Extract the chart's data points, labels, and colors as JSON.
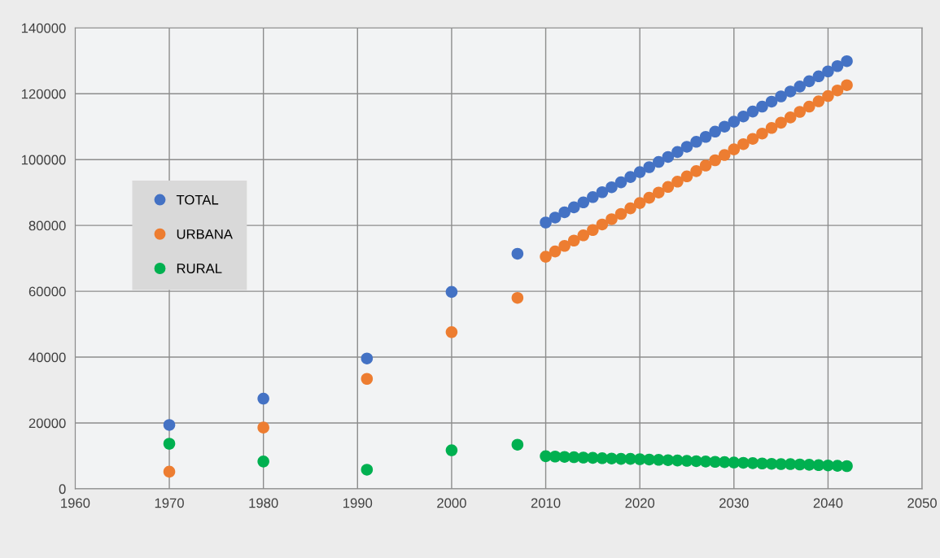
{
  "chart_data": {
    "type": "scatter",
    "xlim": [
      1960,
      2050
    ],
    "xticks": [
      1960,
      1970,
      1980,
      1990,
      2000,
      2010,
      2020,
      2030,
      2040,
      2050
    ],
    "ylim": [
      0,
      140000
    ],
    "yticks": [
      0,
      20000,
      40000,
      60000,
      80000,
      100000,
      120000,
      140000
    ],
    "grid": true,
    "legend": "left",
    "marker": "circle",
    "x": [
      1970,
      1980,
      1991,
      2000,
      2007,
      2010,
      2011,
      2012,
      2013,
      2014,
      2015,
      2016,
      2017,
      2018,
      2019,
      2020,
      2021,
      2022,
      2023,
      2024,
      2025,
      2026,
      2027,
      2028,
      2029,
      2030,
      2031,
      2032,
      2033,
      2034,
      2035,
      2036,
      2037,
      2038,
      2039,
      2040,
      2041,
      2042
    ],
    "series": [
      {
        "name": "TOTAL",
        "color": "#4472c4",
        "values": [
          19400,
          27400,
          39600,
          59800,
          71400,
          80900,
          82400,
          84000,
          85500,
          87000,
          88600,
          90100,
          91600,
          93100,
          94700,
          96200,
          97700,
          99300,
          100800,
          102300,
          103900,
          105400,
          106900,
          108500,
          110000,
          111500,
          113100,
          114600,
          116100,
          117600,
          119200,
          120700,
          122200,
          123800,
          125300,
          126800,
          128400,
          129900
        ]
      },
      {
        "name": "URBANA",
        "color": "#ed7d31",
        "values": [
          5200,
          18600,
          33400,
          47600,
          58000,
          70500,
          72100,
          73800,
          75400,
          77000,
          78600,
          80300,
          81900,
          83500,
          85200,
          86800,
          88400,
          90000,
          91700,
          93300,
          94900,
          96500,
          98200,
          99800,
          101400,
          103100,
          104700,
          106300,
          107900,
          109600,
          111200,
          112800,
          114500,
          116100,
          117700,
          119300,
          121000,
          122600
        ]
      },
      {
        "name": "RURAL",
        "color": "#00b050",
        "values": [
          13700,
          8300,
          5800,
          11700,
          13400,
          9900,
          9800,
          9700,
          9600,
          9500,
          9400,
          9300,
          9200,
          9100,
          9100,
          9000,
          8900,
          8800,
          8700,
          8600,
          8500,
          8400,
          8300,
          8200,
          8100,
          8000,
          7900,
          7800,
          7700,
          7600,
          7500,
          7500,
          7400,
          7300,
          7200,
          7100,
          7000,
          6900
        ]
      }
    ]
  }
}
